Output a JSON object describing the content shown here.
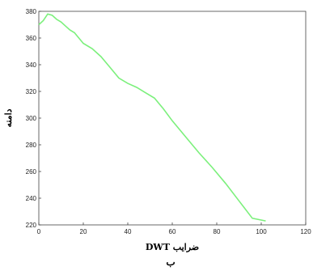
{
  "chart_data": {
    "type": "line",
    "xlabel": "ضرایب DWT",
    "ylabel": "دامنه",
    "caption": "ب",
    "xlim": [
      0,
      120
    ],
    "ylim": [
      220,
      380
    ],
    "x_ticks": [
      0,
      20,
      40,
      60,
      80,
      100,
      120
    ],
    "y_ticks": [
      220,
      240,
      260,
      280,
      300,
      320,
      340,
      360,
      380
    ],
    "grid": false,
    "line_color": "#7cf07c",
    "series": [
      {
        "x": [
          0,
          2,
          4,
          6,
          8,
          10,
          12,
          14,
          16,
          18,
          20,
          24,
          28,
          32,
          36,
          40,
          44,
          48,
          52,
          56,
          60,
          66,
          72,
          78,
          84,
          90,
          96,
          102
        ],
        "y": [
          370,
          373,
          378,
          377,
          374,
          372,
          369,
          366,
          364,
          360,
          356,
          352,
          346,
          338,
          330,
          326,
          323,
          319,
          315,
          307,
          298,
          286,
          274,
          263,
          251,
          238,
          225,
          223
        ]
      }
    ]
  }
}
